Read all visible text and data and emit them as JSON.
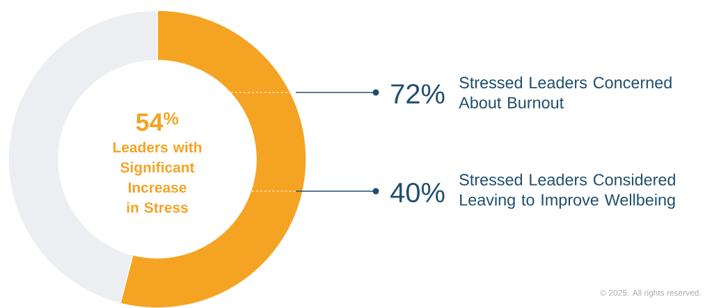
{
  "chart_data": {
    "type": "donut",
    "categories": [
      "Leaders with Significant Increase in Stress",
      null
    ],
    "values": [
      54,
      46
    ],
    "colors": [
      "#f5a323",
      "#eceef1"
    ],
    "value_labels": [
      "54$^{%}$",
      null
    ],
    "annotations": [
      "72%",
      "Stressed Leaders Concerned About Burnout",
      "40%",
      "Stressed Leaders Considered Leaving to Improve Wellbeing",
      "© 2025. All rights reserved."
    ]
  }
}
